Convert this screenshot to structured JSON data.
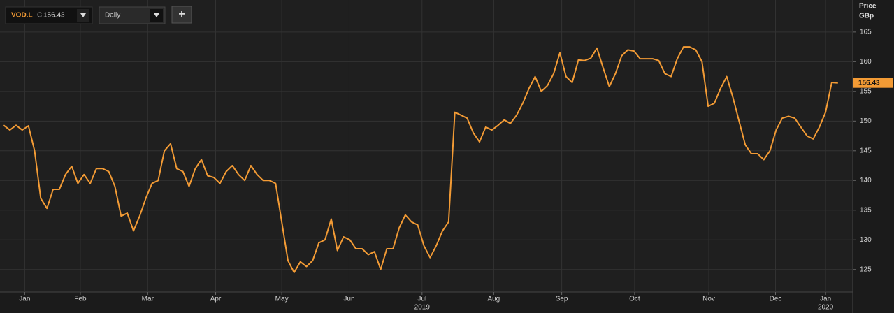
{
  "toolbar": {
    "ticker": "VOD.L",
    "close_prefix": "C",
    "interval": "Daily",
    "add_button": "+"
  },
  "chart_data": {
    "type": "line",
    "y_axis_label": "Price",
    "y_axis_unit": "GBp",
    "color": "#f39b35",
    "values": [
      149.3,
      148.5,
      149.3,
      148.5,
      149.2,
      145,
      137,
      135.3,
      138.5,
      138.5,
      141,
      142.4,
      139.5,
      141,
      139.5,
      142,
      142,
      141.5,
      139,
      134,
      134.5,
      131.5,
      134,
      137,
      139.5,
      140,
      145,
      146.2,
      142,
      141.5,
      139,
      142,
      143.5,
      140.8,
      140.5,
      139.5,
      141.5,
      142.5,
      141,
      140,
      142.5,
      141,
      140,
      140,
      139.5,
      133,
      126.5,
      124.5,
      126.3,
      125.5,
      126.5,
      129.5,
      130,
      133.5,
      128.2,
      130.5,
      130,
      128.5,
      128.5,
      127.5,
      128,
      125,
      128.5,
      128.5,
      132,
      134.2,
      133,
      132.5,
      129,
      127,
      129,
      131.5,
      133,
      151.5,
      151,
      150.5,
      148,
      146.5,
      149,
      148.5,
      149.3,
      150.2,
      149.6,
      151,
      153,
      155.5,
      157.5,
      155,
      156,
      158,
      161.5,
      157.5,
      156.5,
      160.3,
      160.2,
      160.6,
      162.3,
      159,
      155.8,
      158,
      161,
      162,
      161.8,
      160.5,
      160.5,
      160.5,
      160.2,
      158,
      157.5,
      160.5,
      162.5,
      162.5,
      162,
      160,
      152.5,
      153,
      155.5,
      157.5,
      154,
      150,
      146,
      144.5,
      144.5,
      143.5,
      145,
      148.5,
      150.5,
      150.8,
      150.5,
      149,
      147.5,
      147,
      149,
      151.5,
      156.5,
      156.43
    ],
    "xlim": [
      -0.6,
      137.4
    ],
    "xticks": [
      {
        "value": 3.4,
        "label": "Jan"
      },
      {
        "value": 12.4,
        "label": "Feb"
      },
      {
        "value": 23.3,
        "label": "Mar"
      },
      {
        "value": 34.3,
        "label": "Apr"
      },
      {
        "value": 45.0,
        "label": "May"
      },
      {
        "value": 55.9,
        "label": "Jun"
      },
      {
        "value": 67.7,
        "label": "Jul"
      },
      {
        "value": 79.3,
        "label": "Aug"
      },
      {
        "value": 90.3,
        "label": "Sep"
      },
      {
        "value": 102.1,
        "label": "Oct"
      },
      {
        "value": 114.1,
        "label": "Nov"
      },
      {
        "value": 124.9,
        "label": "Dec"
      },
      {
        "value": 133.0,
        "label": "Jan"
      }
    ],
    "year_labels": [
      {
        "value": 67.7,
        "label": "2019"
      },
      {
        "value": 133.0,
        "label": "2020"
      }
    ],
    "ylim": [
      121.2,
      170.4
    ],
    "yticks": [
      125,
      130,
      135,
      140,
      145,
      150,
      155,
      160,
      165
    ],
    "grid": true
  }
}
